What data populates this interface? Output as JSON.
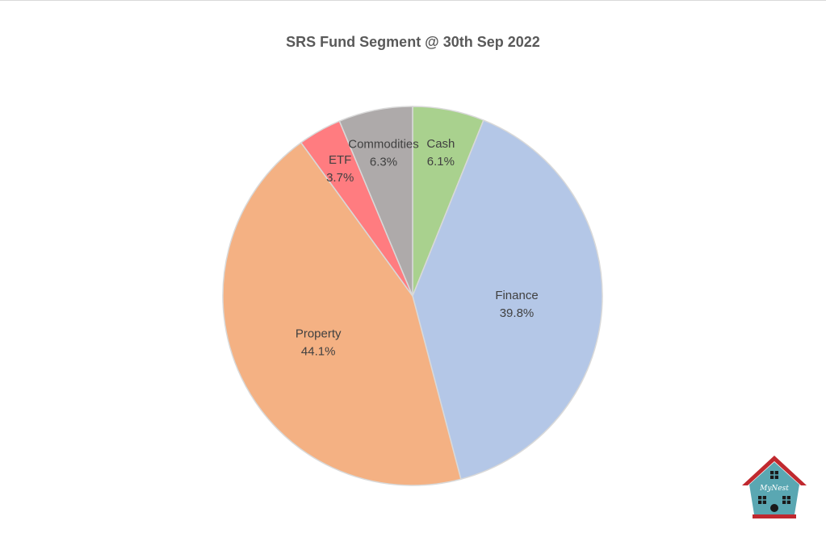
{
  "chart_data": {
    "type": "pie",
    "title": "SRS Fund Segment @ 30th Sep 2022",
    "categories": [
      "Cash",
      "Finance",
      "Property",
      "ETF",
      "Commodities"
    ],
    "values": [
      6.1,
      39.8,
      44.1,
      3.7,
      6.3
    ],
    "value_labels": [
      "6.1%",
      "39.8%",
      "44.1%",
      "3.7%",
      "6.3%"
    ],
    "colors": [
      "#a9d18e",
      "#b4c7e7",
      "#f4b183",
      "#ff7c80",
      "#aeaaaa"
    ],
    "start": "12 o'clock",
    "direction": "clockwise",
    "legend": "none",
    "labels": "inside slices"
  },
  "logo": {
    "text": "MyNest",
    "roof_color": "#c0292f",
    "wall_color": "#5aa7b2"
  }
}
